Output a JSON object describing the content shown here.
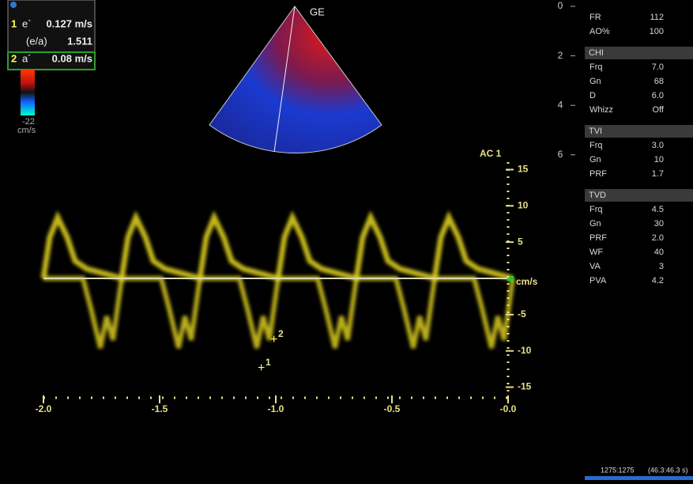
{
  "measurements": [
    {
      "index": "1",
      "label": "e`",
      "value": "0.127 m/s"
    },
    {
      "index": "",
      "label": "(e/a)",
      "value": "1.511"
    },
    {
      "index": "2",
      "label": "a´",
      "value": "0.08 m/s"
    }
  ],
  "colorbar": {
    "min": "-22",
    "unit": "cm/s"
  },
  "sector_label": "GE",
  "depth_ticks": [
    0,
    2,
    4,
    6
  ],
  "doppler": {
    "label": "AC 1",
    "unit": "cm/s",
    "yticks": [
      15,
      10,
      5,
      -5,
      -10,
      -15
    ],
    "xticks": [
      {
        "value": -2.0,
        "label": "-2.0"
      },
      {
        "value": -1.5,
        "label": "-1.5"
      },
      {
        "value": -1.0,
        "label": "-1.0"
      },
      {
        "value": -0.5,
        "label": "-0.5"
      },
      {
        "value": 0,
        "label": "-0.0"
      }
    ],
    "markers": [
      "1",
      "2"
    ]
  },
  "params": [
    {
      "rows": [
        [
          "FR",
          "112"
        ],
        [
          "AO%",
          "100"
        ]
      ]
    },
    {
      "header": "CHI",
      "rows": [
        [
          "Frq",
          "7.0"
        ],
        [
          "Gn",
          "68"
        ],
        [
          "D",
          "6.0"
        ],
        [
          "Whizz",
          "Off"
        ]
      ]
    },
    {
      "header": "TVI",
      "rows": [
        [
          "Frq",
          "3.0"
        ],
        [
          "Gn",
          "10"
        ],
        [
          "PRF",
          "1.7"
        ]
      ]
    },
    {
      "header": "TVD",
      "rows": [
        [
          "Frq",
          "4.5"
        ],
        [
          "Gn",
          "30"
        ],
        [
          "PRF",
          "2.0"
        ],
        [
          "WF",
          "40"
        ],
        [
          "VA",
          "3"
        ],
        [
          "PVA",
          "4.2"
        ]
      ]
    }
  ],
  "footer": {
    "frames": "1275:1275",
    "time": "(46.3:46.3 s)"
  }
}
